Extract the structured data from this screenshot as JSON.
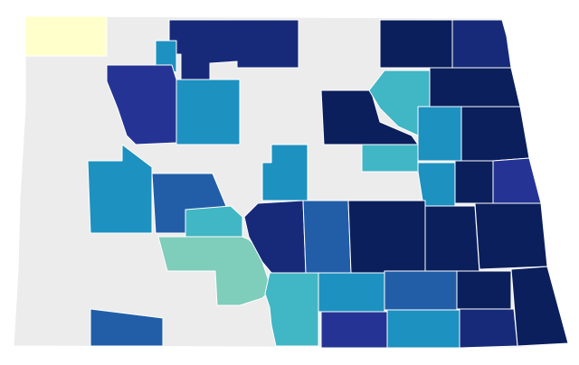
{
  "map": {
    "colors": [
      "#ececec",
      "#ffffcc",
      "#0b1f5c",
      "#172a7a",
      "#253494",
      "#225ea8",
      "#1d91c0",
      "#41b6c4",
      "#7fcdbb"
    ]
  }
}
